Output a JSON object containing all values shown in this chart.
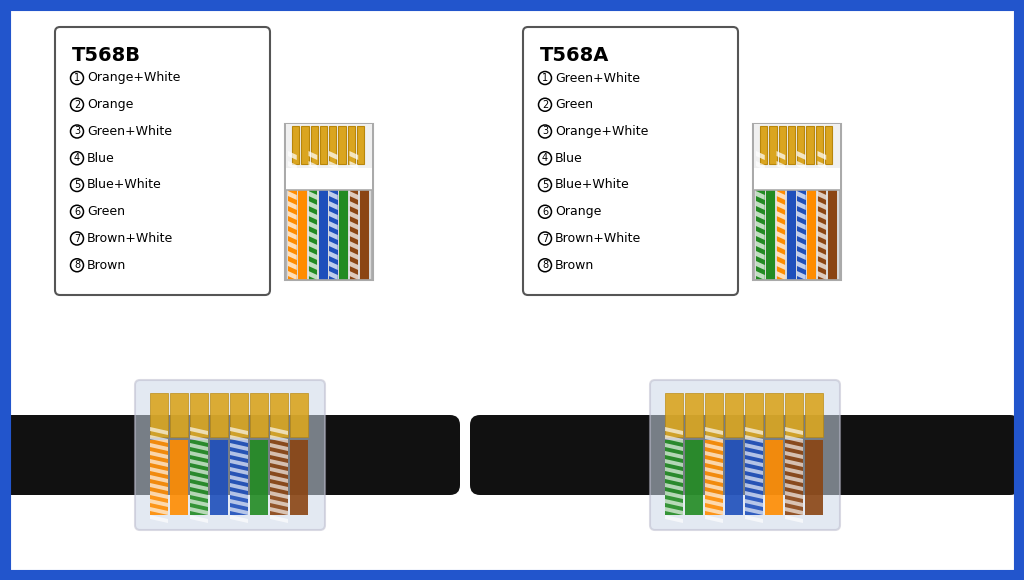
{
  "background_color": "#ffffff",
  "border_color": "#2255cc",
  "border_width": 8,
  "t568b": {
    "title": "T568B",
    "wires": [
      {
        "num": 1,
        "label": "Orange+White",
        "color": "#FF8C00",
        "stripe": true
      },
      {
        "num": 2,
        "label": "Orange",
        "color": "#FF8C00",
        "stripe": false
      },
      {
        "num": 3,
        "label": "Green+White",
        "color": "#228B22",
        "stripe": true
      },
      {
        "num": 4,
        "label": "Blue",
        "color": "#1E4FBB",
        "stripe": false
      },
      {
        "num": 5,
        "label": "Blue+White",
        "color": "#1E4FBB",
        "stripe": true
      },
      {
        "num": 6,
        "label": "Green",
        "color": "#228B22",
        "stripe": false
      },
      {
        "num": 7,
        "label": "Brown+White",
        "color": "#8B4513",
        "stripe": true
      },
      {
        "num": 8,
        "label": "Brown",
        "color": "#8B4513",
        "stripe": false
      }
    ]
  },
  "t568a": {
    "title": "T568A",
    "wires": [
      {
        "num": 1,
        "label": "Green+White",
        "color": "#228B22",
        "stripe": true
      },
      {
        "num": 2,
        "label": "Green",
        "color": "#228B22",
        "stripe": false
      },
      {
        "num": 3,
        "label": "Orange+White",
        "color": "#FF8C00",
        "stripe": true
      },
      {
        "num": 4,
        "label": "Blue",
        "color": "#1E4FBB",
        "stripe": false
      },
      {
        "num": 5,
        "label": "Blue+White",
        "color": "#1E4FBB",
        "stripe": true
      },
      {
        "num": 6,
        "label": "Orange",
        "color": "#FF8C00",
        "stripe": false
      },
      {
        "num": 7,
        "label": "Brown+White",
        "color": "#8B4513",
        "stripe": true
      },
      {
        "num": 8,
        "label": "Brown",
        "color": "#8B4513",
        "stripe": false
      }
    ]
  },
  "gold_color": "#DAA520",
  "connector_body_color": "#e8e8e8",
  "connector_border_color": "#aaaaaa",
  "circled_nums": [
    "1",
    "2",
    "3",
    "4",
    "5",
    "6",
    "7",
    "8"
  ]
}
